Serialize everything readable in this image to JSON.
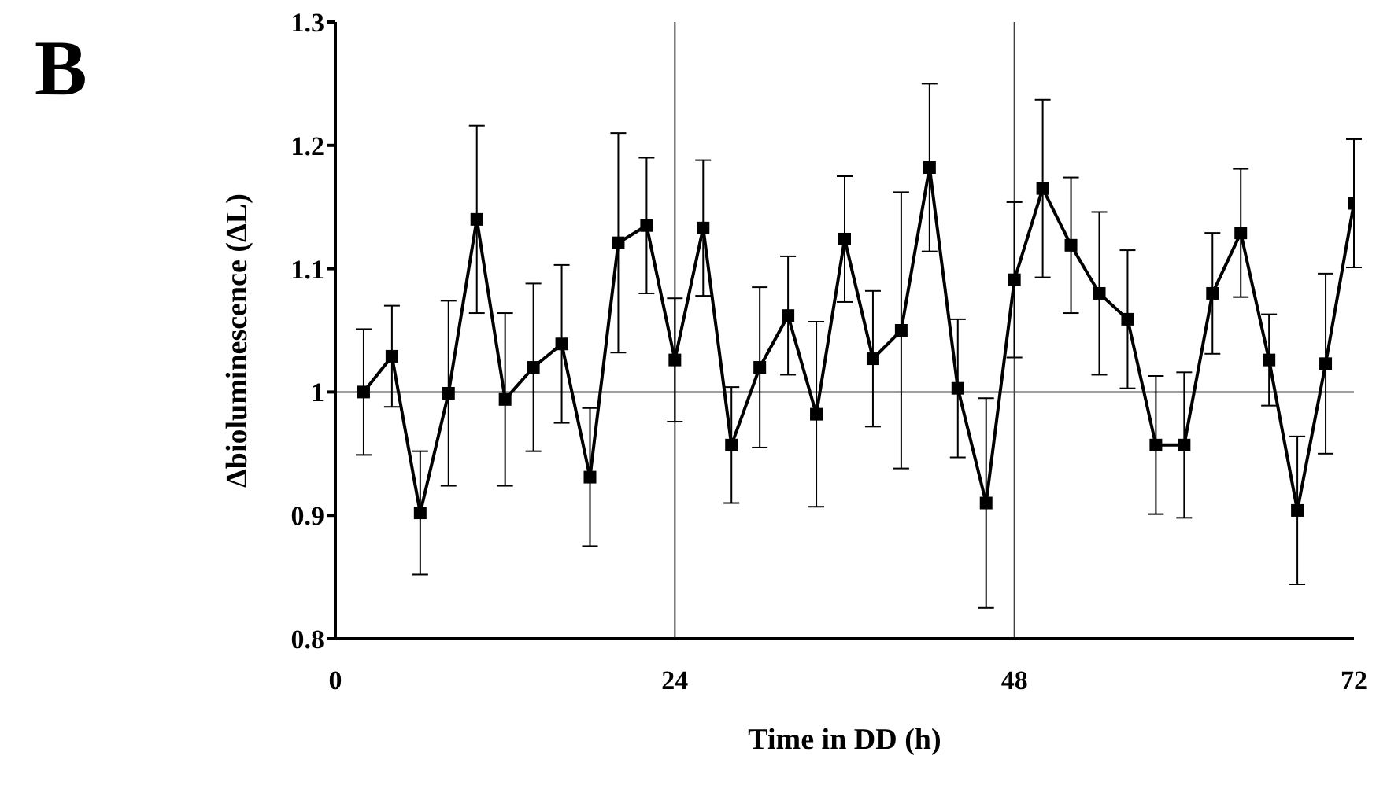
{
  "chart_data": {
    "type": "line",
    "xlabel": "Time in DD (h)",
    "ylabel": "Δbioluminescence (ΔL)",
    "annotations": [
      "B"
    ],
    "x": [
      2,
      4,
      6,
      8,
      10,
      12,
      14,
      16,
      18,
      20,
      22,
      24,
      26,
      28,
      30,
      32,
      34,
      36,
      38,
      40,
      42,
      44,
      46,
      48,
      50,
      52,
      54,
      56,
      58,
      60,
      62,
      64,
      66,
      68,
      70,
      72
    ],
    "series": [
      {
        "color": "#000000",
        "values": [
          1.0,
          1.029,
          0.902,
          0.999,
          1.14,
          0.994,
          1.02,
          1.039,
          0.931,
          1.121,
          1.135,
          1.026,
          1.133,
          0.957,
          1.02,
          1.062,
          0.982,
          1.124,
          1.027,
          1.05,
          1.182,
          1.003,
          0.91,
          1.091,
          1.165,
          1.119,
          1.08,
          1.059,
          0.957,
          0.957,
          1.08,
          1.129,
          1.026,
          0.904,
          1.023,
          1.153
        ],
        "errors": [
          0.051,
          0.041,
          0.05,
          0.075,
          0.076,
          0.07,
          0.068,
          0.064,
          0.056,
          0.089,
          0.055,
          0.05,
          0.055,
          0.047,
          0.065,
          0.048,
          0.075,
          0.051,
          0.055,
          0.112,
          0.068,
          0.056,
          0.085,
          0.063,
          0.072,
          0.055,
          0.066,
          0.056,
          0.056,
          0.059,
          0.049,
          0.052,
          0.037,
          0.06,
          0.073,
          0.052
        ]
      }
    ],
    "xlim": [
      0,
      72
    ],
    "xticks": [
      0,
      24,
      48,
      72
    ],
    "ylim": [
      0.8,
      1.3
    ],
    "yticks": [
      0.8,
      0.9,
      1,
      1.1,
      1.2,
      1.3
    ],
    "ref_lines": [
      {
        "axis": "y",
        "value": 1,
        "color": "#404040"
      },
      {
        "axis": "x",
        "value": 24,
        "color": "#404040"
      },
      {
        "axis": "x",
        "value": 48,
        "color": "#404040"
      }
    ],
    "marker": "square",
    "line_style": "solid",
    "grid": false,
    "legend": false
  }
}
